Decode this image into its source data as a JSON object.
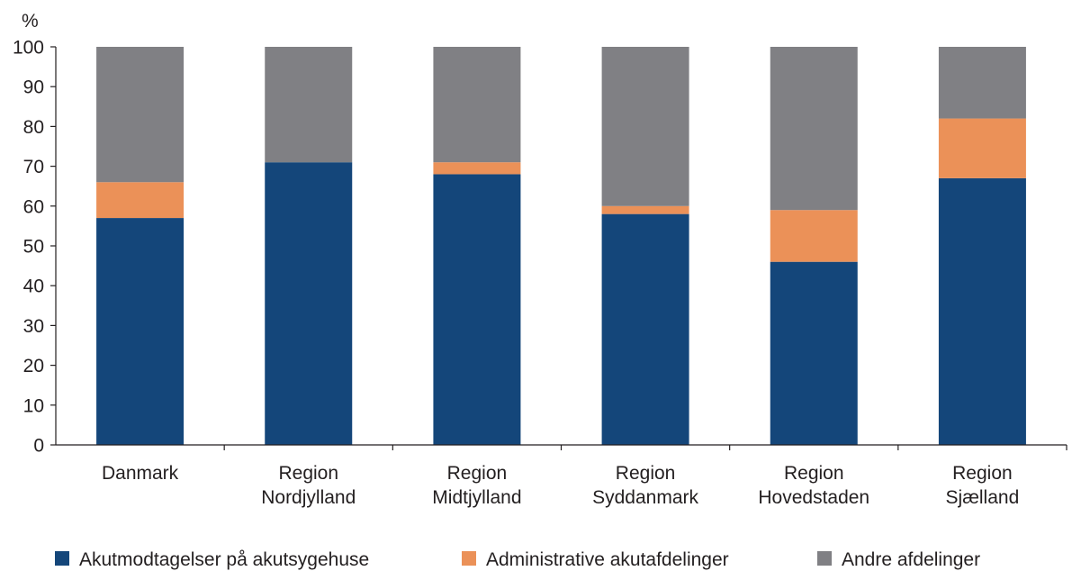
{
  "chart_data": {
    "type": "bar",
    "stacked": true,
    "y_unit_label": "%",
    "ylim": [
      0,
      100
    ],
    "yticks": [
      0,
      10,
      20,
      30,
      40,
      50,
      60,
      70,
      80,
      90,
      100
    ],
    "grid": false,
    "legend_position": "bottom",
    "categories": [
      [
        "Danmark"
      ],
      [
        "Region",
        "Nordjylland"
      ],
      [
        "Region",
        "Midtjylland"
      ],
      [
        "Region",
        "Syddanmark"
      ],
      [
        "Region",
        "Hovedstaden"
      ],
      [
        "Region",
        "Sjælland"
      ]
    ],
    "series": [
      {
        "name": "Akutmodtagelser på akutsygehuse",
        "color": "#14467a",
        "values": [
          57,
          71,
          68,
          58,
          46,
          67
        ]
      },
      {
        "name": "Administrative akutafdelinger",
        "color": "#eb9158",
        "values": [
          9,
          0,
          3,
          2,
          13,
          15
        ]
      },
      {
        "name": "Andre afdelinger",
        "color": "#808084",
        "values": [
          34,
          29,
          29,
          40,
          41,
          18
        ]
      }
    ]
  }
}
